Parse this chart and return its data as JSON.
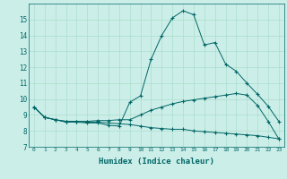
{
  "xlabel": "Humidex (Indice chaleur)",
  "bg_color": "#cceee8",
  "line_color": "#006666",
  "grid_color": "#aaddcc",
  "xlim": [
    -0.5,
    23.5
  ],
  "ylim": [
    7,
    16
  ],
  "yticks": [
    7,
    8,
    9,
    10,
    11,
    12,
    13,
    14,
    15
  ],
  "xticks": [
    0,
    1,
    2,
    3,
    4,
    5,
    6,
    7,
    8,
    9,
    10,
    11,
    12,
    13,
    14,
    15,
    16,
    17,
    18,
    19,
    20,
    21,
    22,
    23
  ],
  "series1_x": [
    0,
    1,
    2,
    3,
    4,
    5,
    6,
    7,
    8,
    9,
    10,
    11,
    12,
    13,
    14,
    15,
    16,
    17,
    18,
    19,
    20,
    21,
    22,
    23
  ],
  "series1_y": [
    9.5,
    8.85,
    8.7,
    8.55,
    8.55,
    8.5,
    8.5,
    8.35,
    8.3,
    9.8,
    10.2,
    12.5,
    14.0,
    15.1,
    15.55,
    15.3,
    13.4,
    13.55,
    12.2,
    11.75,
    11.0,
    10.3,
    9.55,
    8.6
  ],
  "series2_x": [
    0,
    1,
    2,
    3,
    4,
    5,
    6,
    7,
    8,
    9,
    10,
    11,
    12,
    13,
    14,
    15,
    16,
    17,
    18,
    19,
    20,
    21,
    22,
    23
  ],
  "series2_y": [
    9.5,
    8.85,
    8.7,
    8.6,
    8.6,
    8.6,
    8.65,
    8.65,
    8.7,
    8.7,
    9.0,
    9.3,
    9.5,
    9.7,
    9.85,
    9.95,
    10.05,
    10.15,
    10.25,
    10.35,
    10.25,
    9.6,
    8.6,
    7.5
  ],
  "series3_x": [
    0,
    1,
    2,
    3,
    4,
    5,
    6,
    7,
    8,
    9,
    10,
    11,
    12,
    13,
    14,
    15,
    16,
    17,
    18,
    19,
    20,
    21,
    22,
    23
  ],
  "series3_y": [
    9.5,
    8.85,
    8.7,
    8.6,
    8.6,
    8.55,
    8.55,
    8.5,
    8.45,
    8.4,
    8.3,
    8.2,
    8.15,
    8.1,
    8.1,
    8.0,
    7.95,
    7.9,
    7.85,
    7.8,
    7.75,
    7.7,
    7.6,
    7.5
  ]
}
